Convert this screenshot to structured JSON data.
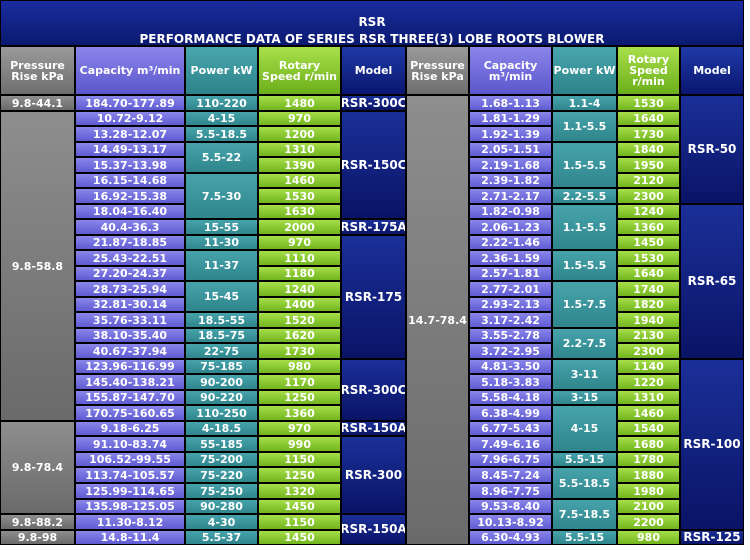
{
  "title": {
    "line1": "RSR",
    "line2": "PERFORMANCE DATA OF SERIES RSR THREE(3) LOBE ROOTS BLOWER"
  },
  "headers": {
    "pressure": "Pressure Rise kPa",
    "capacity": "Capacity m³/min",
    "power": "Power kW",
    "speed_left": "Rotary Speed r/min",
    "speed_right": "Rotary Speed r/min",
    "model": "Model"
  },
  "left": {
    "pressure": [
      "9.8-44.1",
      "9.8-58.8",
      "9.8-78.4",
      "9.8-88.2",
      "9.8-98"
    ],
    "capacity": [
      "184.70-177.89",
      "10.72-9.12",
      "13.28-12.07",
      "14.49-13.17",
      "15.37-13.98",
      "16.15-14.68",
      "16.92-15.38",
      "18.04-16.40",
      "40.4-36.3",
      "21.87-18.85",
      "25.43-22.51",
      "27.20-24.37",
      "28.73-25.94",
      "32.81-30.14",
      "35.76-33.11",
      "38.10-35.40",
      "40.67-37.94",
      "123.96-116.99",
      "145.40-138.21",
      "155.87-147.70",
      "170.75-160.65",
      "9.18-6.25",
      "91.10-83.74",
      "106.52-99.55",
      "113.74-105.57",
      "125.99-114.65",
      "135.98-125.05",
      "11.30-8.12",
      "14.8-11.4"
    ],
    "power": [
      "110-220",
      "4-15",
      "5.5-18.5",
      "5.5-22",
      "7.5-30",
      "15-55",
      "11-30",
      "11-37",
      "15-45",
      "18.5-55",
      "18.5-75",
      "22-75",
      "75-185",
      "90-200",
      "90-220",
      "110-250",
      "4-18.5",
      "55-185",
      "75-200",
      "75-220",
      "75-250",
      "90-280",
      "4-30",
      "5.5-37"
    ],
    "speed": [
      "1480",
      "970",
      "1200",
      "1310",
      "1390",
      "1460",
      "1530",
      "1630",
      "2000",
      "970",
      "1110",
      "1180",
      "1240",
      "1400",
      "1520",
      "1620",
      "1730",
      "980",
      "1170",
      "1250",
      "1360",
      "970",
      "990",
      "1150",
      "1250",
      "1320",
      "1450",
      "1150",
      "1450"
    ],
    "model": [
      "RSR-300C",
      "RSR-150C",
      "RSR-175A",
      "RSR-175",
      "RSR-300C",
      "RSR-150A",
      "RSR-300",
      "RSR-150A"
    ]
  },
  "right": {
    "pressure": [
      "14.7-78.4"
    ],
    "capacity": [
      "1.68-1.13",
      "1.81-1.29",
      "1.92-1.39",
      "2.05-1.51",
      "2.19-1.68",
      "2.39-1.82",
      "2.71-2.17",
      "1.82-0.98",
      "2.06-1.23",
      "2.22-1.46",
      "2.36-1.59",
      "2.57-1.81",
      "2.77-2.01",
      "2.93-2.13",
      "3.17-2.42",
      "3.55-2.78",
      "3.72-2.95",
      "4.81-3.50",
      "5.18-3.83",
      "5.58-4.18",
      "6.38-4.99",
      "6.77-5.43",
      "7.49-6.16",
      "7.96-6.75",
      "8.45-7.24",
      "8.96-7.75",
      "9.53-8.40",
      "10.13-8.92",
      "6.30-4.93"
    ],
    "power": [
      "1.1-4",
      "1.1-5.5",
      "1.5-5.5",
      "2.2-5.5",
      "1.1-5.5",
      "1.5-5.5",
      "1.5-7.5",
      "2.2-7.5",
      "3-11",
      "3-15",
      "4-15",
      "5.5-15",
      "5.5-18.5",
      "7.5-18.5",
      "5.5-15"
    ],
    "speed": [
      "1530",
      "1640",
      "1730",
      "1840",
      "1950",
      "2120",
      "2300",
      "1240",
      "1360",
      "1450",
      "1530",
      "1640",
      "1740",
      "1820",
      "1940",
      "2130",
      "2300",
      "1140",
      "1220",
      "1310",
      "1460",
      "1540",
      "1680",
      "1780",
      "1880",
      "1980",
      "2100",
      "2200",
      "980"
    ],
    "model": [
      "RSR-50",
      "RSR-65",
      "RSR-100",
      "RSR-125"
    ]
  }
}
